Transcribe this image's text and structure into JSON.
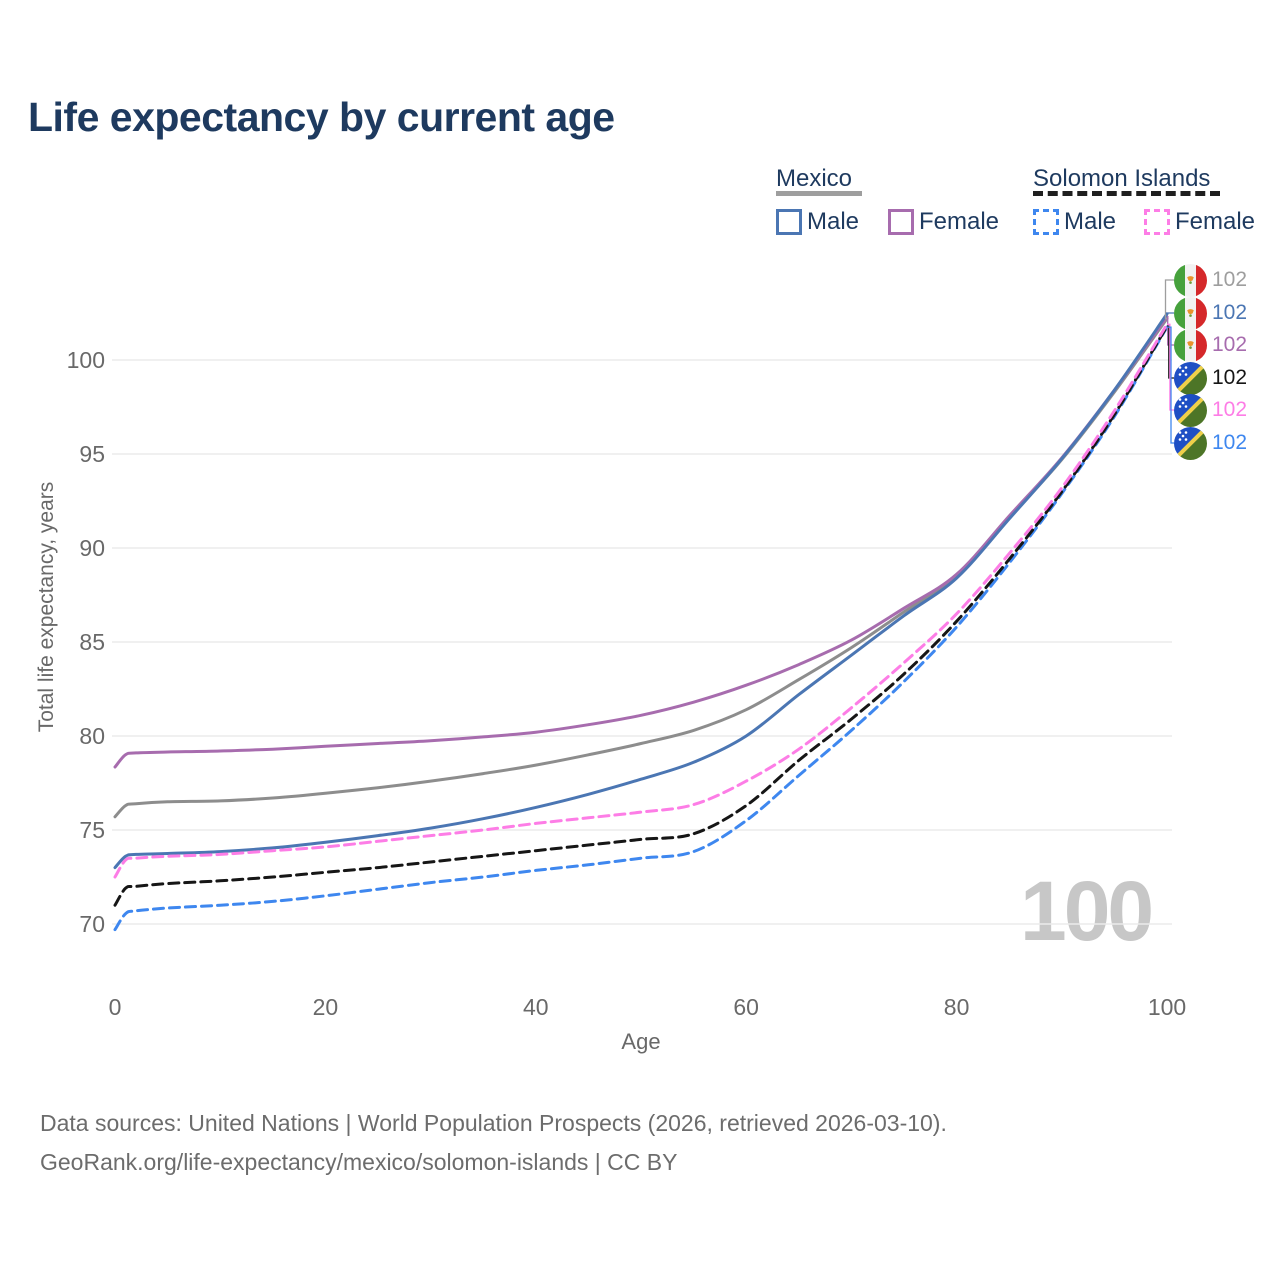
{
  "title": "Life expectancy by current age",
  "legend": {
    "groups": [
      {
        "label": "Mexico",
        "line_style": "solid",
        "line_color": "#9e9e9e",
        "items": [
          {
            "label": "Male",
            "color": "#4b76b3",
            "box_style": "solid"
          },
          {
            "label": "Female",
            "color": "#a76cae",
            "box_style": "solid"
          }
        ]
      },
      {
        "label": "Solomon Islands",
        "line_style": "dashed",
        "line_color": "#1f1f1f",
        "items": [
          {
            "label": "Male",
            "color": "#3e87ef",
            "box_style": "dashed"
          },
          {
            "label": "Female",
            "color": "#fd7de6",
            "box_style": "dashed"
          }
        ]
      }
    ]
  },
  "age_counter": "100",
  "footer": {
    "line1": "Data sources: United Nations | World Population Prospects (2026, retrieved 2026-03-10).",
    "line2": "GeoRank.org/life-expectancy/mexico/solomon-islands | CC BY"
  },
  "chart_data": {
    "type": "line",
    "title": "Life expectancy by current age",
    "xlabel": "Age",
    "ylabel": "Total life expectancy, years",
    "x_ticks": [
      0,
      20,
      40,
      60,
      80,
      100
    ],
    "y_ticks": [
      70,
      75,
      80,
      85,
      90,
      95,
      100
    ],
    "xlim": [
      0,
      100
    ],
    "ylim": [
      69,
      103
    ],
    "grid": "horizontal",
    "legend_position": "top-right",
    "ages": [
      0,
      1,
      2,
      5,
      10,
      15,
      20,
      25,
      30,
      35,
      40,
      45,
      50,
      55,
      60,
      65,
      70,
      75,
      80,
      85,
      90,
      95,
      100
    ],
    "series": [
      {
        "name": "Mexico",
        "sex": "both",
        "color": "#8d8d8d",
        "dash": "solid",
        "flag": "mexico",
        "values": [
          75.7,
          76.3,
          76.4,
          76.5,
          76.55,
          76.7,
          76.95,
          77.25,
          77.6,
          78.0,
          78.45,
          79.0,
          79.6,
          80.3,
          81.4,
          83.0,
          84.7,
          86.6,
          88.5,
          91.6,
          94.7,
          98.3,
          102.2
        ]
      },
      {
        "name": "Mexico Female",
        "sex": "female",
        "color": "#a76cae",
        "dash": "solid",
        "flag": "mexico",
        "values": [
          78.35,
          79.0,
          79.1,
          79.15,
          79.2,
          79.3,
          79.45,
          79.6,
          79.75,
          79.95,
          80.2,
          80.6,
          81.1,
          81.8,
          82.7,
          83.8,
          85.1,
          86.8,
          88.6,
          91.7,
          94.8,
          98.4,
          102.3
        ]
      },
      {
        "name": "Mexico Male",
        "sex": "male",
        "color": "#4b76b3",
        "dash": "solid",
        "flag": "mexico",
        "values": [
          73.0,
          73.6,
          73.7,
          73.75,
          73.85,
          74.05,
          74.35,
          74.7,
          75.1,
          75.6,
          76.2,
          76.9,
          77.7,
          78.6,
          80.0,
          82.2,
          84.3,
          86.4,
          88.4,
          91.55,
          94.75,
          98.4,
          102.45
        ]
      },
      {
        "name": "Solomon Islands Male",
        "sex": "male",
        "color": "#3e87ef",
        "dash": "dashed",
        "flag": "solomon",
        "values": [
          69.7,
          70.55,
          70.7,
          70.85,
          71.0,
          71.2,
          71.5,
          71.85,
          72.2,
          72.5,
          72.85,
          73.15,
          73.5,
          73.85,
          75.5,
          77.9,
          80.3,
          82.9,
          85.8,
          89.2,
          92.9,
          97.0,
          101.75
        ]
      },
      {
        "name": "Solomon Islands",
        "sex": "both",
        "color": "#161616",
        "dash": "dashed",
        "flag": "solomon",
        "values": [
          71.0,
          71.9,
          72.0,
          72.15,
          72.3,
          72.5,
          72.75,
          73.0,
          73.3,
          73.6,
          73.9,
          74.2,
          74.5,
          74.8,
          76.3,
          78.7,
          80.9,
          83.3,
          86.1,
          89.4,
          93.0,
          97.1,
          101.8
        ]
      },
      {
        "name": "Solomon Islands Female",
        "sex": "female",
        "color": "#fd7de6",
        "dash": "dashed",
        "flag": "solomon",
        "values": [
          72.5,
          73.4,
          73.5,
          73.6,
          73.7,
          73.9,
          74.1,
          74.4,
          74.7,
          75.0,
          75.35,
          75.65,
          75.95,
          76.35,
          77.6,
          79.3,
          81.5,
          83.9,
          86.5,
          89.7,
          93.2,
          97.3,
          101.9
        ]
      }
    ],
    "end_label_rows": [
      {
        "series": "Mexico",
        "label": "102",
        "color": "#9e9e9e",
        "flag": "mexico"
      },
      {
        "series": "Mexico Male",
        "label": "102",
        "color": "#4b76b3",
        "flag": "mexico"
      },
      {
        "series": "Mexico Female",
        "label": "102",
        "color": "#a76cae",
        "flag": "mexico"
      },
      {
        "series": "Solomon Islands",
        "label": "102",
        "color": "#161616",
        "flag": "solomon"
      },
      {
        "series": "Solomon Islands Female",
        "label": "102",
        "color": "#fd7de6",
        "flag": "solomon"
      },
      {
        "series": "Solomon Islands Male",
        "label": "102",
        "color": "#3e87ef",
        "flag": "solomon"
      }
    ]
  }
}
